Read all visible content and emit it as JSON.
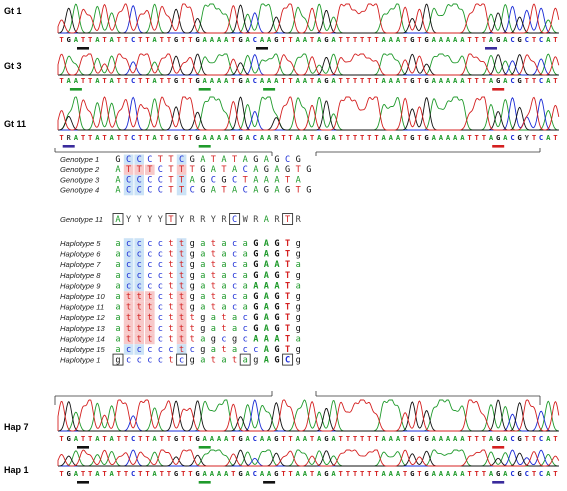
{
  "colors": {
    "A": "#1f9a2b",
    "C": "#1a2bd6",
    "G": "#111111",
    "T": "#d42020",
    "N": "#444444",
    "blue_highlight": "#cce3f6",
    "red_highlight": "#f7c9c9",
    "mark_black": "#111111",
    "mark_purple": "#3a2b9c",
    "mark_green": "#1f9a2b",
    "mark_red": "#d42020"
  },
  "chromatograms": [
    {
      "label": "Gt 1",
      "sequence": "TGATTATATTCTTATTGTTGAAAATGACAAGTTAATAGATTTTTTAAATGTGAAAAATTTAGACGCTCAT",
      "marks": [
        {
          "at": 4,
          "color": "mark_black"
        },
        {
          "at": 29,
          "color": "mark_black"
        },
        {
          "at": 61,
          "color": "mark_purple"
        }
      ]
    },
    {
      "label": "Gt 3",
      "sequence": "TAATTATATTCTTATTGTTGAAAATGACAAATTAATAGATTTTTTAAATGTGAAAAATTTAGACGTTCAT",
      "marks": [
        {
          "at": 3,
          "color": "mark_green"
        },
        {
          "at": 21,
          "color": "mark_green"
        },
        {
          "at": 30,
          "color": "mark_green"
        },
        {
          "at": 62,
          "color": "mark_red"
        }
      ]
    },
    {
      "label": "Gt 11",
      "sequence": "TRATTATATTCTTATTGTTGAAAATGACAARTTAATAGATTTTTTAAATGTGAAAAATTTAGACGYTCAT",
      "marks": [
        {
          "at": 2,
          "color": "mark_purple"
        },
        {
          "at": 21,
          "color": "mark_green"
        },
        {
          "at": 62,
          "color": "mark_red"
        }
      ]
    },
    {
      "label": "Hap 7",
      "sequence": "TGATTATATTCTTATTGTTGAAAATGACAAGTTAATAGATTTTTTAAATGTGAAAAATTTAGACGTTCAT",
      "marks": [
        {
          "at": 4,
          "color": "mark_black"
        },
        {
          "at": 21,
          "color": "mark_green"
        },
        {
          "at": 62,
          "color": "mark_red"
        }
      ]
    },
    {
      "label": "Hap 1",
      "sequence": "TGATTATATTCTTATTGTTGAAAATGACAAGTTAATAGATTTTTTAAATGTGAAAAATTTAGACGCTCAT",
      "marks": [
        {
          "at": 4,
          "color": "mark_black"
        },
        {
          "at": 21,
          "color": "mark_green"
        },
        {
          "at": 30,
          "color": "mark_black"
        },
        {
          "at": 62,
          "color": "mark_purple"
        }
      ]
    }
  ],
  "genotypes": [
    {
      "label": "Genotype 1",
      "bases": "GCCCTTCGATATAGAGCG"
    },
    {
      "label": "Genotype 2",
      "bases": "ATTTCTTTGATACAGAGTG"
    },
    {
      "label": "Genotype 3",
      "bases": "ACCCCTTAGCGCTAAATA"
    },
    {
      "label": "Genotype 4",
      "bases": "ACCCCTTCGATACAGAGTG"
    }
  ],
  "genotype11": {
    "label": "Genotype 11",
    "bases": "AYYYYTYRRYRCWRARTR",
    "boxed": [
      0,
      5,
      11,
      16
    ]
  },
  "haplotypes": [
    {
      "label": "Haplotype 5",
      "bases": "accccttgatacaGAGTg"
    },
    {
      "label": "Haplotype 6",
      "bases": "accccttgatacaGAGTg"
    },
    {
      "label": "Haplotype 7",
      "bases": "accccttgatacaGAATa"
    },
    {
      "label": "Haplotype 8",
      "bases": "accccttgatacaGAGTg"
    },
    {
      "label": "Haplotype 9",
      "bases": "accccttgatacaAAATa"
    },
    {
      "label": "Haplotype 10",
      "bases": "atttcttgatacaGAGTg"
    },
    {
      "label": "Haplotype 11",
      "bases": "atttcttgatacaGAGTg"
    },
    {
      "label": "Haplotype 12",
      "bases": "atttctttgatacGAGTg"
    },
    {
      "label": "Haplotype 13",
      "bases": "atttctttgatacGAGTg"
    },
    {
      "label": "Haplotype 14",
      "bases": "atttctttagcgcAAATa"
    },
    {
      "label": "Haplotype 15",
      "bases": "accccctcgataccAGTg"
    },
    {
      "label": "Haplotype 1",
      "bases": "gcccctcgatatagAGCg",
      "boxed": [
        0,
        6,
        12,
        16
      ]
    }
  ]
}
